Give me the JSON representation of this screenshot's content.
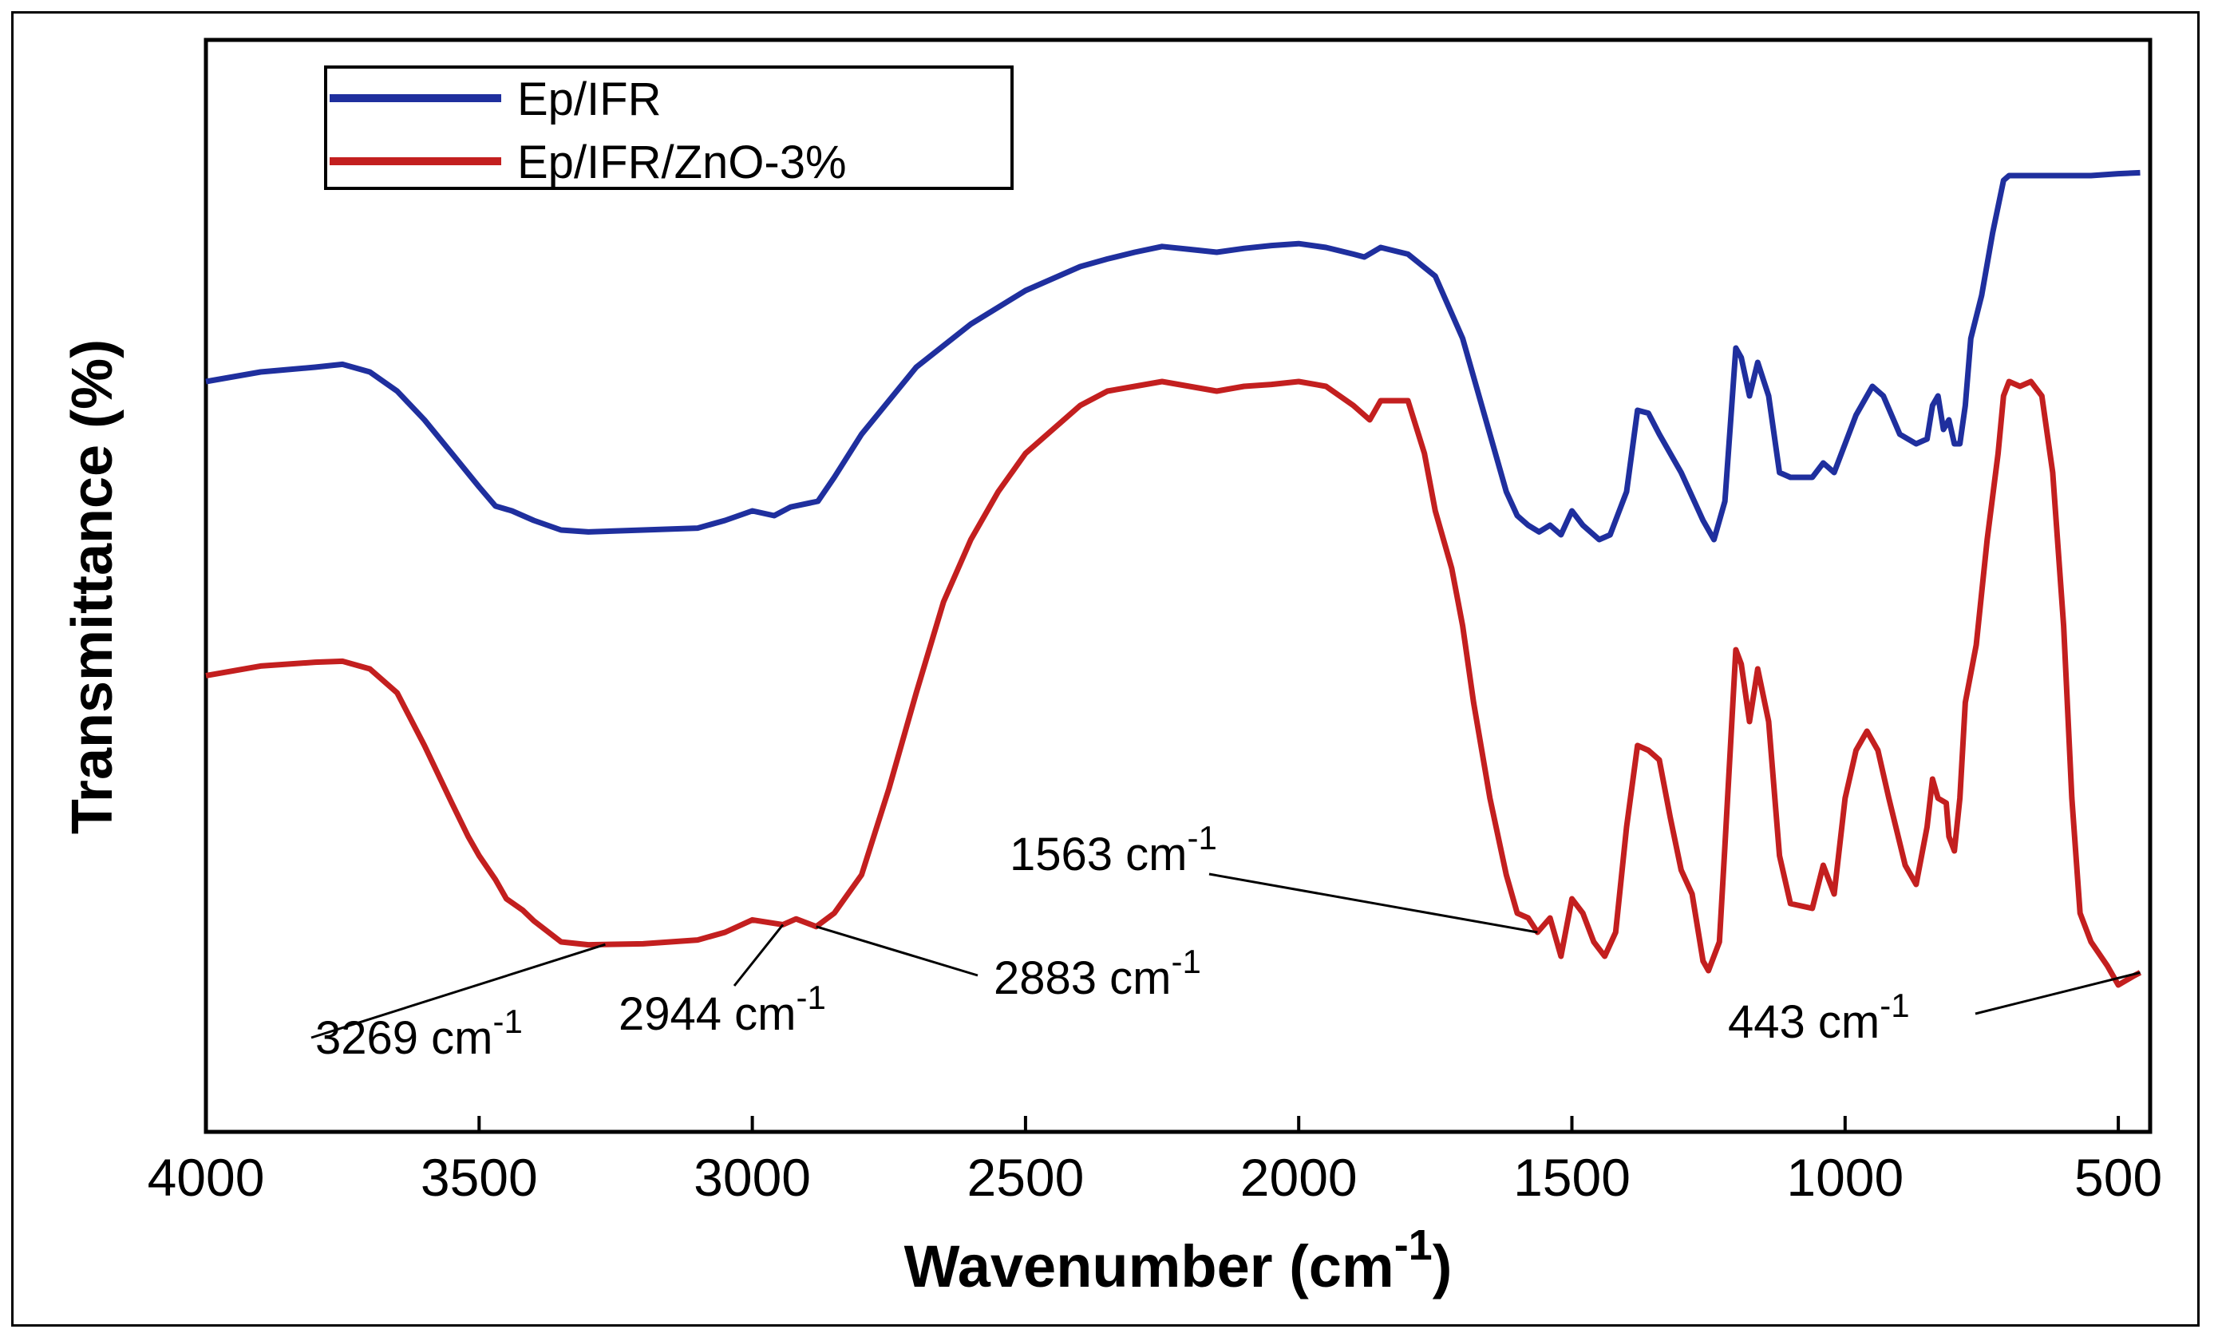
{
  "chart_data": {
    "type": "line",
    "title": "",
    "xlabel": "Wavenumber (cm",
    "xlabel_sup": "-1",
    "xlabel_close": ")",
    "ylabel": "Transmittance (%)",
    "xlim": [
      4000,
      450
    ],
    "ylim": [
      0,
      100
    ],
    "xticks": [
      4000,
      3500,
      3000,
      2500,
      2000,
      1500,
      1000,
      500
    ],
    "yticks_shown": false,
    "grid": false,
    "legend_position": "top-left",
    "series": [
      {
        "name": "Ep/IFR",
        "color": "#1f2f9e",
        "points": [
          [
            4000,
            73.5
          ],
          [
            3900,
            74.5
          ],
          [
            3800,
            75
          ],
          [
            3750,
            75.3
          ],
          [
            3700,
            74.5
          ],
          [
            3650,
            72.5
          ],
          [
            3600,
            69.5
          ],
          [
            3550,
            66
          ],
          [
            3500,
            62.5
          ],
          [
            3470,
            60.5
          ],
          [
            3440,
            60
          ],
          [
            3400,
            59
          ],
          [
            3350,
            58
          ],
          [
            3300,
            57.8
          ],
          [
            3200,
            58
          ],
          [
            3100,
            58.2
          ],
          [
            3050,
            59
          ],
          [
            3000,
            60
          ],
          [
            2960,
            59.5
          ],
          [
            2930,
            60.4
          ],
          [
            2880,
            61
          ],
          [
            2850,
            63.5
          ],
          [
            2800,
            68
          ],
          [
            2700,
            75
          ],
          [
            2600,
            79.5
          ],
          [
            2500,
            83
          ],
          [
            2400,
            85.5
          ],
          [
            2350,
            86.3
          ],
          [
            2300,
            87
          ],
          [
            2250,
            87.6
          ],
          [
            2200,
            87.3
          ],
          [
            2150,
            87
          ],
          [
            2100,
            87.4
          ],
          [
            2050,
            87.7
          ],
          [
            2000,
            87.9
          ],
          [
            1950,
            87.5
          ],
          [
            1900,
            86.8
          ],
          [
            1880,
            86.5
          ],
          [
            1850,
            87.5
          ],
          [
            1800,
            86.8
          ],
          [
            1750,
            84.5
          ],
          [
            1700,
            78
          ],
          [
            1650,
            68
          ],
          [
            1620,
            62
          ],
          [
            1600,
            59.5
          ],
          [
            1580,
            58.5
          ],
          [
            1560,
            57.8
          ],
          [
            1540,
            58.5
          ],
          [
            1520,
            57.5
          ],
          [
            1500,
            60
          ],
          [
            1480,
            58.5
          ],
          [
            1450,
            57
          ],
          [
            1430,
            57.5
          ],
          [
            1400,
            62
          ],
          [
            1380,
            70.5
          ],
          [
            1360,
            70.2
          ],
          [
            1340,
            68
          ],
          [
            1300,
            64
          ],
          [
            1280,
            61.5
          ],
          [
            1260,
            59
          ],
          [
            1240,
            57
          ],
          [
            1220,
            61
          ],
          [
            1200,
            77
          ],
          [
            1190,
            76
          ],
          [
            1175,
            72
          ],
          [
            1160,
            75.5
          ],
          [
            1140,
            72
          ],
          [
            1120,
            64
          ],
          [
            1100,
            63.5
          ],
          [
            1060,
            63.5
          ],
          [
            1040,
            65
          ],
          [
            1020,
            64
          ],
          [
            1000,
            67
          ],
          [
            980,
            70
          ],
          [
            950,
            73
          ],
          [
            930,
            72
          ],
          [
            900,
            68
          ],
          [
            870,
            67
          ],
          [
            850,
            67.5
          ],
          [
            840,
            71
          ],
          [
            830,
            72
          ],
          [
            820,
            68.5
          ],
          [
            810,
            69.5
          ],
          [
            800,
            67
          ],
          [
            790,
            67
          ],
          [
            780,
            71
          ],
          [
            770,
            78
          ],
          [
            750,
            82.5
          ],
          [
            730,
            89
          ],
          [
            710,
            94.5
          ],
          [
            700,
            95
          ],
          [
            600,
            95
          ],
          [
            550,
            95
          ],
          [
            500,
            95.2
          ],
          [
            460,
            95.3
          ]
        ]
      },
      {
        "name": "Ep/IFR/ZnO-3%",
        "color": "#c31f1f",
        "points": [
          [
            4000,
            42.8
          ],
          [
            3900,
            43.8
          ],
          [
            3800,
            44.2
          ],
          [
            3750,
            44.3
          ],
          [
            3700,
            43.5
          ],
          [
            3650,
            41
          ],
          [
            3600,
            35.5
          ],
          [
            3550,
            29.5
          ],
          [
            3520,
            26
          ],
          [
            3500,
            24
          ],
          [
            3470,
            21.5
          ],
          [
            3450,
            19.5
          ],
          [
            3420,
            18.3
          ],
          [
            3400,
            17.2
          ],
          [
            3350,
            15
          ],
          [
            3300,
            14.7
          ],
          [
            3200,
            14.8
          ],
          [
            3100,
            15.2
          ],
          [
            3050,
            16
          ],
          [
            3000,
            17.3
          ],
          [
            2944,
            16.8
          ],
          [
            2920,
            17.4
          ],
          [
            2883,
            16.6
          ],
          [
            2850,
            18
          ],
          [
            2800,
            22
          ],
          [
            2750,
            31
          ],
          [
            2700,
            41
          ],
          [
            2650,
            50.5
          ],
          [
            2600,
            57
          ],
          [
            2550,
            62
          ],
          [
            2500,
            66
          ],
          [
            2450,
            68.5
          ],
          [
            2400,
            71
          ],
          [
            2350,
            72.5
          ],
          [
            2300,
            73
          ],
          [
            2250,
            73.5
          ],
          [
            2200,
            73
          ],
          [
            2150,
            72.5
          ],
          [
            2100,
            73
          ],
          [
            2050,
            73.2
          ],
          [
            2000,
            73.5
          ],
          [
            1950,
            73
          ],
          [
            1900,
            71
          ],
          [
            1870,
            69.5
          ],
          [
            1850,
            71.5
          ],
          [
            1800,
            71.5
          ],
          [
            1770,
            66
          ],
          [
            1750,
            60
          ],
          [
            1720,
            54
          ],
          [
            1700,
            48
          ],
          [
            1680,
            40
          ],
          [
            1650,
            30
          ],
          [
            1620,
            22
          ],
          [
            1600,
            18
          ],
          [
            1580,
            17.5
          ],
          [
            1563,
            16
          ],
          [
            1540,
            17.5
          ],
          [
            1520,
            13.5
          ],
          [
            1500,
            19.5
          ],
          [
            1480,
            18
          ],
          [
            1460,
            15
          ],
          [
            1440,
            13.5
          ],
          [
            1420,
            16
          ],
          [
            1400,
            27
          ],
          [
            1380,
            35.5
          ],
          [
            1360,
            35
          ],
          [
            1340,
            34
          ],
          [
            1320,
            28
          ],
          [
            1300,
            22.5
          ],
          [
            1280,
            20
          ],
          [
            1260,
            13
          ],
          [
            1250,
            12
          ],
          [
            1230,
            15
          ],
          [
            1220,
            25
          ],
          [
            1200,
            45.5
          ],
          [
            1190,
            44
          ],
          [
            1175,
            38
          ],
          [
            1160,
            43.5
          ],
          [
            1140,
            38
          ],
          [
            1120,
            24
          ],
          [
            1100,
            19
          ],
          [
            1060,
            18.5
          ],
          [
            1040,
            23
          ],
          [
            1020,
            20
          ],
          [
            1000,
            30
          ],
          [
            980,
            35
          ],
          [
            960,
            37
          ],
          [
            940,
            35
          ],
          [
            920,
            30
          ],
          [
            890,
            23
          ],
          [
            870,
            21
          ],
          [
            850,
            27
          ],
          [
            840,
            32
          ],
          [
            830,
            30
          ],
          [
            815,
            29.5
          ],
          [
            810,
            26
          ],
          [
            800,
            24.5
          ],
          [
            790,
            30
          ],
          [
            780,
            40
          ],
          [
            760,
            46
          ],
          [
            740,
            57
          ],
          [
            720,
            66
          ],
          [
            710,
            72
          ],
          [
            700,
            73.5
          ],
          [
            680,
            73
          ],
          [
            660,
            73.5
          ],
          [
            640,
            72
          ],
          [
            620,
            64
          ],
          [
            600,
            48
          ],
          [
            585,
            30
          ],
          [
            570,
            18
          ],
          [
            550,
            15
          ],
          [
            520,
            12.5
          ],
          [
            500,
            10.5
          ],
          [
            470,
            11.5
          ],
          [
            460,
            11.8
          ]
        ]
      }
    ],
    "annotations": [
      {
        "label": "3269 cm",
        "sup": "-1",
        "x": 3269,
        "series": 1
      },
      {
        "label": "2944 cm",
        "sup": "-1",
        "x": 2944,
        "series": 1
      },
      {
        "label": "2883 cm",
        "sup": "-1",
        "x": 2883,
        "series": 1
      },
      {
        "label": "1563 cm",
        "sup": "-1",
        "x": 1563,
        "series": 1
      },
      {
        "label": "443 cm",
        "sup": "-1",
        "x": 460,
        "series": 1
      }
    ]
  }
}
